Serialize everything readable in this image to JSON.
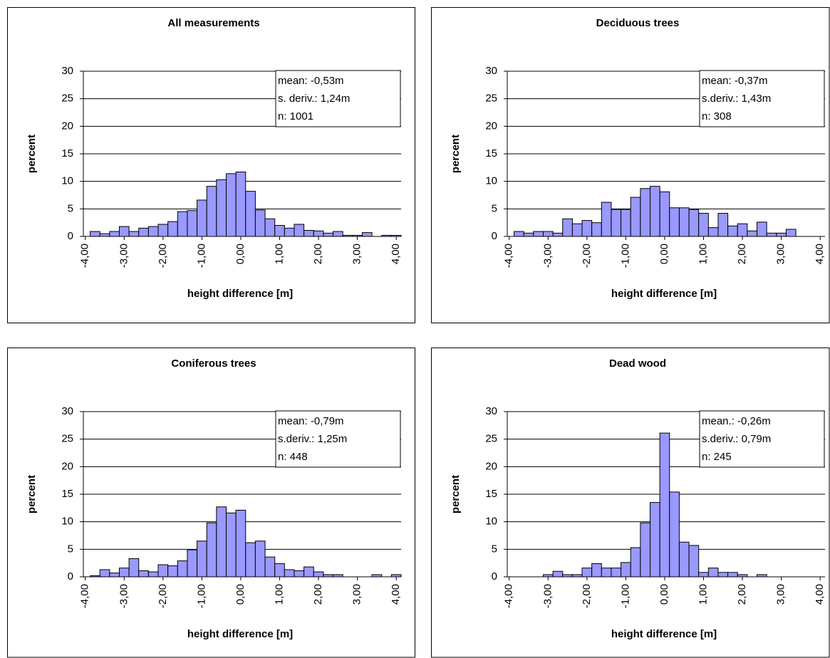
{
  "chart_data": [
    {
      "type": "histogram",
      "title": "All measurements",
      "xlabel": "height difference [m]",
      "ylabel": "percent",
      "color": "#9999ff",
      "grid": true,
      "annotations": [
        "mean: -0,53m",
        "s. deriv.: 1,24m",
        "n: 1001"
      ],
      "bins": [
        -3.875,
        -3.625,
        -3.375,
        -3.125,
        -2.875,
        -2.625,
        -2.375,
        -2.125,
        -1.875,
        -1.625,
        -1.375,
        -1.125,
        -0.875,
        -0.625,
        -0.375,
        -0.125,
        0.125,
        0.375,
        0.625,
        0.875,
        1.125,
        1.375,
        1.625,
        1.875,
        2.125,
        2.375,
        2.625,
        2.875,
        3.125,
        3.375,
        3.625,
        3.875,
        4.125
      ],
      "values": [
        0.9,
        0.5,
        0.9,
        1.8,
        0.9,
        1.5,
        1.8,
        2.2,
        2.7,
        4.5,
        4.7,
        6.6,
        9.1,
        10.3,
        11.4,
        11.7,
        8.2,
        4.8,
        3.2,
        2.0,
        1.5,
        2.2,
        1.1,
        1.0,
        0.6,
        0.9,
        0.2,
        0.2,
        0.7,
        0,
        0.2,
        0.2
      ],
      "xlim": [
        -4.05,
        4.125
      ],
      "ylim": [
        0,
        30
      ],
      "yticks": [
        0,
        5,
        10,
        15,
        20,
        25,
        30
      ],
      "xticks": [
        {
          "value": -4,
          "label": "-4,00"
        },
        {
          "value": -3,
          "label": "-3,00"
        },
        {
          "value": -2,
          "label": "-2,00"
        },
        {
          "value": -1,
          "label": "-1,00"
        },
        {
          "value": 0,
          "label": "0,00"
        },
        {
          "value": 1,
          "label": "1,00"
        },
        {
          "value": 2,
          "label": "2,00"
        },
        {
          "value": 3,
          "label": "3,00"
        },
        {
          "value": 4,
          "label": "4,00"
        }
      ]
    },
    {
      "type": "histogram",
      "title": "Deciduous trees",
      "xlabel": "height difference [m]",
      "ylabel": "percent",
      "color": "#9999ff",
      "grid": true,
      "annotations": [
        "mean: -0,37m",
        "s.deriv.: 1,43m",
        "n: 308"
      ],
      "bins": [
        -3.875,
        -3.625,
        -3.375,
        -3.125,
        -2.875,
        -2.625,
        -2.375,
        -2.125,
        -1.875,
        -1.625,
        -1.375,
        -1.125,
        -0.875,
        -0.625,
        -0.375,
        -0.125,
        0.125,
        0.375,
        0.625,
        0.875,
        1.125,
        1.375,
        1.625,
        1.875,
        2.125,
        2.375,
        2.625,
        2.875,
        3.125,
        3.375,
        3.625,
        3.875,
        4.125
      ],
      "values": [
        0.9,
        0.6,
        0.9,
        0.9,
        0.6,
        3.2,
        2.3,
        2.9,
        2.5,
        6.2,
        4.9,
        4.9,
        7.1,
        8.7,
        9.1,
        8.1,
        5.2,
        5.2,
        4.9,
        4.2,
        1.6,
        4.2,
        1.9,
        2.3,
        1.0,
        2.6,
        0.6,
        0.6,
        1.3,
        0,
        0,
        0
      ],
      "xlim": [
        -4.05,
        4.125
      ],
      "ylim": [
        0,
        30
      ],
      "yticks": [
        0,
        5,
        10,
        15,
        20,
        25,
        30
      ],
      "xticks": [
        {
          "value": -4,
          "label": "-4,00"
        },
        {
          "value": -3,
          "label": "-3,00"
        },
        {
          "value": -2,
          "label": "-2,00"
        },
        {
          "value": -1,
          "label": "-1,00"
        },
        {
          "value": 0,
          "label": "0,00"
        },
        {
          "value": 1,
          "label": "1,00"
        },
        {
          "value": 2,
          "label": "2,00"
        },
        {
          "value": 3,
          "label": "3,00"
        },
        {
          "value": 4,
          "label": "4,00"
        }
      ]
    },
    {
      "type": "histogram",
      "title": "Coniferous trees",
      "xlabel": "height difference [m]",
      "ylabel": "percent",
      "color": "#9999ff",
      "grid": true,
      "annotations": [
        "mean: -0,79m",
        "s.deriv.: 1,25m",
        "n: 448"
      ],
      "bins": [
        -3.875,
        -3.625,
        -3.375,
        -3.125,
        -2.875,
        -2.625,
        -2.375,
        -2.125,
        -1.875,
        -1.625,
        -1.375,
        -1.125,
        -0.875,
        -0.625,
        -0.375,
        -0.125,
        0.125,
        0.375,
        0.625,
        0.875,
        1.125,
        1.375,
        1.625,
        1.875,
        2.125,
        2.375,
        2.625,
        2.875,
        3.125,
        3.375,
        3.625,
        3.875,
        4.125
      ],
      "values": [
        0.2,
        1.3,
        0.7,
        1.6,
        3.3,
        1.1,
        0.9,
        2.2,
        2.0,
        2.9,
        4.9,
        6.5,
        9.8,
        12.7,
        11.6,
        12.1,
        6.2,
        6.5,
        3.6,
        2.4,
        1.3,
        1.1,
        1.8,
        0.9,
        0.4,
        0.4,
        0,
        0,
        0,
        0.4,
        0,
        0.4
      ],
      "xlim": [
        -4.05,
        4.125
      ],
      "ylim": [
        0,
        30
      ],
      "yticks": [
        0,
        5,
        10,
        15,
        20,
        25,
        30
      ],
      "xticks": [
        {
          "value": -4,
          "label": "-4,00"
        },
        {
          "value": -3,
          "label": "-3,00"
        },
        {
          "value": -2,
          "label": "-2,00"
        },
        {
          "value": -1,
          "label": "-1,00"
        },
        {
          "value": 0,
          "label": "0,00"
        },
        {
          "value": 1,
          "label": "1,00"
        },
        {
          "value": 2,
          "label": "2,00"
        },
        {
          "value": 3,
          "label": "3,00"
        },
        {
          "value": 4,
          "label": "4,00"
        }
      ]
    },
    {
      "type": "histogram",
      "title": "Dead wood",
      "xlabel": "height difference [m]",
      "ylabel": "percent",
      "color": "#9999ff",
      "grid": true,
      "annotations": [
        "mean.: -0,26m",
        "s.deriv.: 0,79m",
        "n: 245"
      ],
      "bins": [
        -3.875,
        -3.625,
        -3.375,
        -3.125,
        -2.875,
        -2.625,
        -2.375,
        -2.125,
        -1.875,
        -1.625,
        -1.375,
        -1.125,
        -0.875,
        -0.625,
        -0.375,
        -0.125,
        0.125,
        0.375,
        0.625,
        0.875,
        1.125,
        1.375,
        1.625,
        1.875,
        2.125,
        2.375,
        2.625,
        2.875,
        3.125,
        3.375,
        3.625,
        3.875,
        4.125
      ],
      "values": [
        0,
        0,
        0,
        0.4,
        1.0,
        0.4,
        0.4,
        1.6,
        2.4,
        1.6,
        1.6,
        2.6,
        5.3,
        9.8,
        13.5,
        26.1,
        15.4,
        6.3,
        5.7,
        0.8,
        1.6,
        0.8,
        0.8,
        0.4,
        0,
        0.4,
        0,
        0,
        0,
        0,
        0,
        0
      ],
      "xlim": [
        -4.05,
        4.125
      ],
      "ylim": [
        0,
        30
      ],
      "yticks": [
        0,
        5,
        10,
        15,
        20,
        25,
        30
      ],
      "xticks": [
        {
          "value": -4,
          "label": "-4,00"
        },
        {
          "value": -3,
          "label": "-3,00"
        },
        {
          "value": -2,
          "label": "-2,00"
        },
        {
          "value": -1,
          "label": "-1,00"
        },
        {
          "value": 0,
          "label": "0,00"
        },
        {
          "value": 1,
          "label": "1,00"
        },
        {
          "value": 2,
          "label": "2,00"
        },
        {
          "value": 3,
          "label": "3,00"
        },
        {
          "value": 4,
          "label": "4,00"
        }
      ]
    }
  ]
}
